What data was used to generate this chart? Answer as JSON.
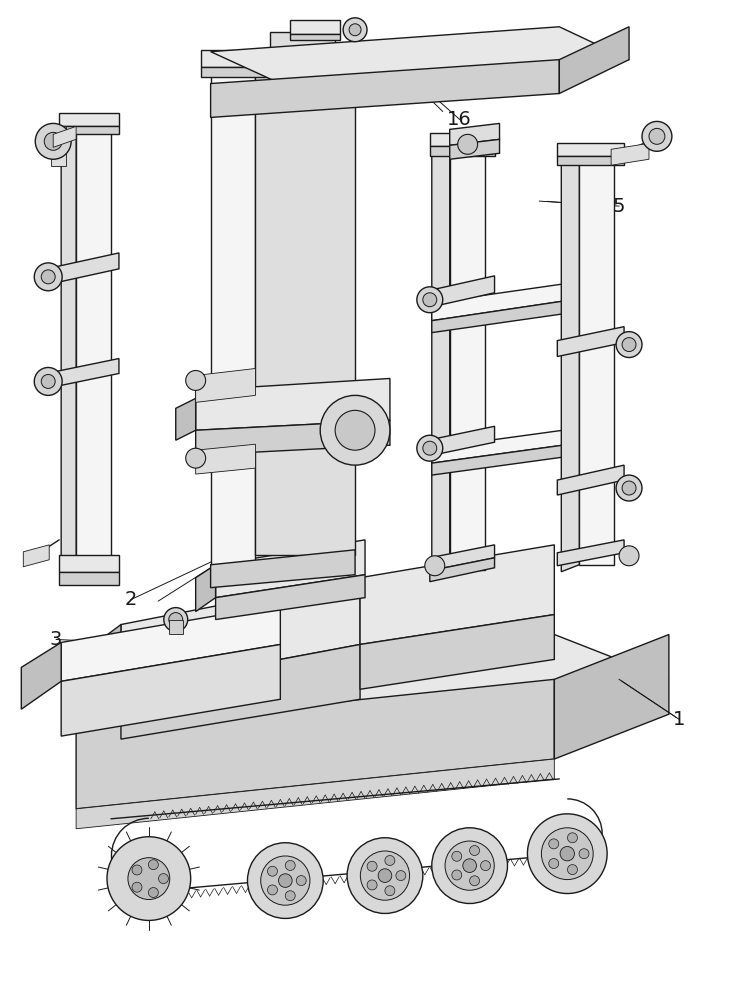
{
  "background_color": "#ffffff",
  "line_color": "#1a1a1a",
  "lw": 1.0,
  "tlw": 0.6,
  "fig_width": 7.49,
  "fig_height": 10.0,
  "label_fontsize": 14,
  "colors": {
    "top": "#e8e8e8",
    "front": "#d0d0d0",
    "side": "#c0c0c0",
    "white": "#f5f5f5",
    "mid": "#dedede",
    "dark": "#b8b8b8"
  }
}
